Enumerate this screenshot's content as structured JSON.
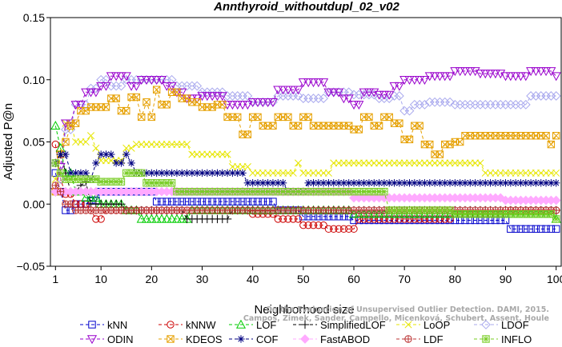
{
  "chart_data": {
    "type": "line",
    "title": "Annthyroid_withoutdupl_02_v02",
    "xlabel": "Neighborhood size",
    "ylabel": "Adjusted P@n",
    "xlim": [
      0,
      101
    ],
    "ylim": [
      -0.05,
      0.15
    ],
    "x_ticks": [
      1,
      10,
      20,
      30,
      40,
      50,
      60,
      70,
      80,
      90,
      100
    ],
    "y_ticks": [
      -0.05,
      0.0,
      0.05,
      0.1,
      0.15
    ],
    "y_tick_labels": [
      "−0.05",
      "0.00",
      "0.05",
      "0.10",
      "0.15"
    ],
    "grid": false,
    "legend_position": "bottom",
    "watermark": [
      "Campos, Zimek, Sander, Campello, Micenková, Schubert, Assent, Houle",
      "On the Evaluation of Unsupervised Outlier Detection. DAMI, 2015."
    ],
    "series": [
      {
        "name": "kNN",
        "color": "#0000cc",
        "marker": "square",
        "points": [
          [
            1,
            0.025
          ],
          [
            2,
            0.01
          ],
          [
            3,
            -0.005
          ],
          [
            5,
            0.0
          ],
          [
            8,
            0.003
          ],
          [
            10,
            0.01
          ],
          [
            15,
            0.01
          ],
          [
            20,
            0.01
          ],
          [
            21,
            0.002
          ],
          [
            30,
            0.002
          ],
          [
            40,
            0.002
          ],
          [
            45,
            -0.005
          ],
          [
            50,
            -0.01
          ],
          [
            60,
            -0.013
          ],
          [
            70,
            -0.013
          ],
          [
            80,
            -0.013
          ],
          [
            90,
            -0.013
          ],
          [
            91,
            -0.02
          ],
          [
            100,
            -0.02
          ]
        ]
      },
      {
        "name": "kNNW",
        "color": "#cc0000",
        "marker": "circle",
        "points": [
          [
            1,
            0.048
          ],
          [
            2,
            0.02
          ],
          [
            3,
            0.008
          ],
          [
            5,
            0.0
          ],
          [
            8,
            -0.005
          ],
          [
            9,
            -0.012
          ],
          [
            10,
            -0.012
          ],
          [
            11,
            -0.005
          ],
          [
            20,
            -0.005
          ],
          [
            30,
            -0.005
          ],
          [
            40,
            -0.008
          ],
          [
            45,
            -0.012
          ],
          [
            50,
            -0.017
          ],
          [
            55,
            -0.02
          ],
          [
            60,
            -0.02
          ],
          [
            61,
            -0.012
          ],
          [
            70,
            -0.012
          ],
          [
            80,
            -0.008
          ],
          [
            90,
            -0.005
          ],
          [
            100,
            -0.005
          ]
        ]
      },
      {
        "name": "LOF",
        "color": "#00cc00",
        "marker": "triangle-up",
        "points": [
          [
            1,
            0.063
          ],
          [
            2,
            0.045
          ],
          [
            3,
            0.025
          ],
          [
            5,
            0.01
          ],
          [
            7,
            0.005
          ],
          [
            10,
            0.0
          ],
          [
            15,
            -0.005
          ],
          [
            18,
            -0.012
          ],
          [
            27,
            -0.012
          ],
          [
            28,
            -0.005
          ],
          [
            40,
            -0.005
          ],
          [
            50,
            -0.005
          ],
          [
            60,
            -0.008
          ],
          [
            70,
            -0.008
          ],
          [
            80,
            -0.008
          ],
          [
            90,
            -0.008
          ],
          [
            100,
            -0.012
          ]
        ]
      },
      {
        "name": "SimplifiedLOF",
        "color": "#000000",
        "marker": "plus",
        "points": [
          [
            1,
            0.033
          ],
          [
            2,
            0.04
          ],
          [
            3,
            0.025
          ],
          [
            4,
            0.01
          ],
          [
            5,
            0.01
          ],
          [
            6,
            0.015
          ],
          [
            7,
            0.018
          ],
          [
            8,
            0.0
          ],
          [
            15,
            -0.005
          ],
          [
            26,
            -0.005
          ],
          [
            27,
            -0.012
          ],
          [
            35,
            -0.012
          ],
          [
            36,
            -0.005
          ],
          [
            50,
            -0.005
          ],
          [
            60,
            -0.005
          ],
          [
            70,
            -0.005
          ],
          [
            80,
            -0.005
          ],
          [
            90,
            -0.005
          ],
          [
            100,
            -0.005
          ]
        ]
      },
      {
        "name": "LoOP",
        "color": "#e6e600",
        "marker": "x",
        "points": [
          [
            1,
            0.02
          ],
          [
            2,
            0.04
          ],
          [
            3,
            0.065
          ],
          [
            5,
            0.05
          ],
          [
            8,
            0.055
          ],
          [
            9,
            0.045
          ],
          [
            10,
            0.035
          ],
          [
            15,
            0.045
          ],
          [
            17,
            0.048
          ],
          [
            27,
            0.048
          ],
          [
            28,
            0.04
          ],
          [
            35,
            0.04
          ],
          [
            36,
            0.03
          ],
          [
            40,
            0.025
          ],
          [
            48,
            0.025
          ],
          [
            49,
            0.033
          ],
          [
            50,
            0.025
          ],
          [
            55,
            0.025
          ],
          [
            56,
            0.033
          ],
          [
            70,
            0.033
          ],
          [
            80,
            0.033
          ],
          [
            85,
            0.033
          ],
          [
            86,
            0.025
          ],
          [
            100,
            0.025
          ]
        ]
      },
      {
        "name": "LDOF",
        "color": "#aaaaee",
        "marker": "diamond",
        "points": [
          [
            1,
            0.01
          ],
          [
            2,
            0.02
          ],
          [
            3,
            0.06
          ],
          [
            5,
            0.08
          ],
          [
            8,
            0.093
          ],
          [
            10,
            0.1
          ],
          [
            12,
            0.095
          ],
          [
            15,
            0.1
          ],
          [
            20,
            0.1
          ],
          [
            25,
            0.095
          ],
          [
            30,
            0.09
          ],
          [
            35,
            0.087
          ],
          [
            40,
            0.082
          ],
          [
            45,
            0.087
          ],
          [
            50,
            0.085
          ],
          [
            55,
            0.09
          ],
          [
            60,
            0.088
          ],
          [
            65,
            0.085
          ],
          [
            68,
            0.087
          ],
          [
            70,
            0.075
          ],
          [
            72,
            0.08
          ],
          [
            75,
            0.082
          ],
          [
            80,
            0.08
          ],
          [
            85,
            0.08
          ],
          [
            90,
            0.08
          ],
          [
            95,
            0.087
          ],
          [
            100,
            0.087
          ]
        ]
      },
      {
        "name": "ODIN",
        "color": "#9900cc",
        "marker": "triangle-down",
        "points": [
          [
            1,
            0.01
          ],
          [
            2,
            0.03
          ],
          [
            3,
            0.065
          ],
          [
            5,
            0.08
          ],
          [
            7,
            0.09
          ],
          [
            10,
            0.095
          ],
          [
            12,
            0.103
          ],
          [
            14,
            0.103
          ],
          [
            16,
            0.095
          ],
          [
            18,
            0.1
          ],
          [
            20,
            0.1
          ],
          [
            23,
            0.095
          ],
          [
            25,
            0.09
          ],
          [
            27,
            0.085
          ],
          [
            30,
            0.087
          ],
          [
            35,
            0.08
          ],
          [
            40,
            0.082
          ],
          [
            45,
            0.092
          ],
          [
            50,
            0.098
          ],
          [
            55,
            0.09
          ],
          [
            58,
            0.085
          ],
          [
            60,
            0.08
          ],
          [
            62,
            0.09
          ],
          [
            65,
            0.088
          ],
          [
            68,
            0.095
          ],
          [
            70,
            0.1
          ],
          [
            75,
            0.103
          ],
          [
            80,
            0.107
          ],
          [
            85,
            0.105
          ],
          [
            90,
            0.103
          ],
          [
            95,
            0.107
          ],
          [
            100,
            0.103
          ]
        ]
      },
      {
        "name": "KDEOS",
        "color": "#e6a000",
        "marker": "square-x",
        "points": [
          [
            1,
            0.01
          ],
          [
            2,
            0.04
          ],
          [
            3,
            0.05
          ],
          [
            4,
            0.063
          ],
          [
            5,
            0.065
          ],
          [
            6,
            0.075
          ],
          [
            8,
            0.078
          ],
          [
            10,
            0.078
          ],
          [
            12,
            0.085
          ],
          [
            14,
            0.075
          ],
          [
            16,
            0.086
          ],
          [
            18,
            0.07
          ],
          [
            19,
            0.082
          ],
          [
            20,
            0.07
          ],
          [
            21,
            0.092
          ],
          [
            22,
            0.08
          ],
          [
            24,
            0.09
          ],
          [
            26,
            0.085
          ],
          [
            28,
            0.082
          ],
          [
            30,
            0.078
          ],
          [
            33,
            0.08
          ],
          [
            35,
            0.07
          ],
          [
            38,
            0.056
          ],
          [
            40,
            0.07
          ],
          [
            42,
            0.063
          ],
          [
            45,
            0.07
          ],
          [
            48,
            0.063
          ],
          [
            50,
            0.07
          ],
          [
            52,
            0.063
          ],
          [
            55,
            0.063
          ],
          [
            58,
            0.063
          ],
          [
            60,
            0.06
          ],
          [
            62,
            0.07
          ],
          [
            64,
            0.063
          ],
          [
            66,
            0.07
          ],
          [
            68,
            0.065
          ],
          [
            70,
            0.052
          ],
          [
            72,
            0.063
          ],
          [
            74,
            0.048
          ],
          [
            76,
            0.04
          ],
          [
            78,
            0.048
          ],
          [
            80,
            0.05
          ],
          [
            82,
            0.055
          ],
          [
            85,
            0.055
          ],
          [
            90,
            0.055
          ],
          [
            95,
            0.055
          ],
          [
            99,
            0.048
          ],
          [
            100,
            0.055
          ]
        ]
      },
      {
        "name": "COF",
        "color": "#000080",
        "marker": "asterisk",
        "points": [
          [
            1,
            0.033
          ],
          [
            2,
            0.04
          ],
          [
            3,
            0.04
          ],
          [
            4,
            0.025
          ],
          [
            6,
            0.025
          ],
          [
            8,
            0.02
          ],
          [
            9,
            0.033
          ],
          [
            10,
            0.04
          ],
          [
            12,
            0.04
          ],
          [
            13,
            0.033
          ],
          [
            15,
            0.04
          ],
          [
            16,
            0.033
          ],
          [
            17,
            0.025
          ],
          [
            25,
            0.025
          ],
          [
            30,
            0.025
          ],
          [
            35,
            0.025
          ],
          [
            38,
            0.025
          ],
          [
            39,
            0.017
          ],
          [
            45,
            0.017
          ],
          [
            47,
            0.01
          ],
          [
            50,
            0.01
          ],
          [
            51,
            0.017
          ],
          [
            60,
            0.017
          ],
          [
            70,
            0.017
          ],
          [
            80,
            0.017
          ],
          [
            90,
            0.017
          ],
          [
            100,
            0.017
          ]
        ]
      },
      {
        "name": "FastABOD",
        "color": "#ffaaff",
        "marker": "diamond-filled",
        "points": [
          [
            1,
            0.01
          ],
          [
            2,
            0.01
          ],
          [
            5,
            0.01
          ],
          [
            10,
            0.01
          ],
          [
            20,
            0.01
          ],
          [
            30,
            0.01
          ],
          [
            40,
            0.01
          ],
          [
            50,
            0.01
          ],
          [
            60,
            0.005
          ],
          [
            70,
            0.005
          ],
          [
            80,
            0.005
          ],
          [
            90,
            0.003
          ],
          [
            100,
            0.003
          ]
        ]
      },
      {
        "name": "LDF",
        "color": "#bb3333",
        "marker": "circle-plus",
        "points": [
          [
            1,
            0.015
          ],
          [
            2,
            0.01
          ],
          [
            3,
            0.0
          ],
          [
            5,
            -0.005
          ],
          [
            10,
            -0.005
          ],
          [
            20,
            -0.005
          ],
          [
            30,
            -0.005
          ],
          [
            40,
            -0.005
          ],
          [
            50,
            -0.005
          ],
          [
            60,
            -0.005
          ],
          [
            70,
            -0.005
          ],
          [
            80,
            -0.005
          ],
          [
            90,
            -0.005
          ],
          [
            100,
            -0.005
          ]
        ]
      },
      {
        "name": "INFLO",
        "color": "#77cc22",
        "marker": "square-star",
        "points": [
          [
            1,
            0.033
          ],
          [
            2,
            0.025
          ],
          [
            3,
            0.02
          ],
          [
            5,
            0.02
          ],
          [
            8,
            0.02
          ],
          [
            10,
            0.018
          ],
          [
            14,
            0.018
          ],
          [
            15,
            0.025
          ],
          [
            18,
            0.025
          ],
          [
            19,
            0.017
          ],
          [
            23,
            0.017
          ],
          [
            25,
            0.01
          ],
          [
            35,
            0.01
          ],
          [
            40,
            0.01
          ],
          [
            45,
            0.01
          ],
          [
            50,
            0.01
          ],
          [
            52,
            0.01
          ],
          [
            55,
            0.01
          ],
          [
            60,
            0.01
          ],
          [
            65,
            0.01
          ],
          [
            67,
            -0.005
          ],
          [
            80,
            -0.008
          ],
          [
            90,
            -0.008
          ],
          [
            100,
            -0.012
          ]
        ]
      }
    ]
  }
}
